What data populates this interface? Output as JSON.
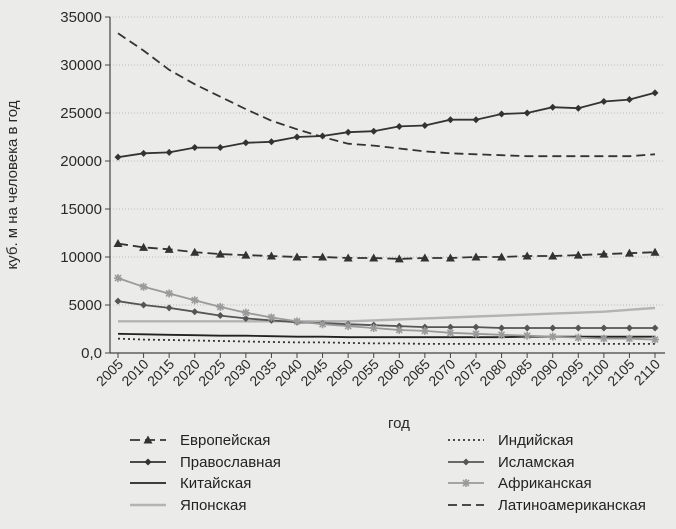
{
  "chart_data": {
    "type": "line",
    "title": "",
    "xlabel": "год",
    "ylabel": "куб. м на человека в год",
    "ylim": [
      0,
      35000
    ],
    "yticks": [
      0,
      5000,
      10000,
      15000,
      20000,
      25000,
      30000,
      35000
    ],
    "ytick_labels": [
      "0,0",
      "5000",
      "10000",
      "15000",
      "20000",
      "25000",
      "30000",
      "35000"
    ],
    "xticks": [
      "2005",
      "2010",
      "2015",
      "2020",
      "2025",
      "2030",
      "2035",
      "2040",
      "2045",
      "2050",
      "2055",
      "2060",
      "2065",
      "2070",
      "2075",
      "2080",
      "2085",
      "2090",
      "2095",
      "2100",
      "2105",
      "2110"
    ],
    "grid": "horizontal",
    "legend_position": "bottom",
    "series": [
      {
        "name": "Европейская",
        "color": "#333333",
        "dash": "10,5",
        "marker": "triangle",
        "x": [
          2005,
          2010,
          2015,
          2020,
          2025,
          2030,
          2035,
          2040,
          2045,
          2050,
          2055,
          2060,
          2065,
          2070,
          2075,
          2080,
          2085,
          2090,
          2095,
          2100,
          2105,
          2110
        ],
        "values": [
          11400,
          11000,
          10800,
          10500,
          10300,
          10200,
          10100,
          10000,
          10000,
          9900,
          9900,
          9800,
          9900,
          9900,
          10000,
          10000,
          10100,
          10100,
          10200,
          10300,
          10400,
          10500
        ]
      },
      {
        "name": "Православная",
        "color": "#333333",
        "dash": "",
        "marker": "diamond",
        "x": [
          2005,
          2010,
          2015,
          2020,
          2025,
          2030,
          2035,
          2040,
          2045,
          2050,
          2055,
          2060,
          2065,
          2070,
          2075,
          2080,
          2085,
          2090,
          2095,
          2100,
          2105,
          2110
        ],
        "values": [
          20400,
          20800,
          20900,
          21400,
          21400,
          21900,
          22000,
          22500,
          22600,
          23000,
          23100,
          23600,
          23700,
          24300,
          24300,
          24900,
          25000,
          25600,
          25500,
          26200,
          26400,
          27100
        ]
      },
      {
        "name": "Китайская",
        "color": "#222222",
        "dash": "",
        "marker": "none",
        "x": [
          2005,
          2010,
          2015,
          2020,
          2025,
          2030,
          2035,
          2040,
          2045,
          2050,
          2055,
          2060,
          2065,
          2070,
          2075,
          2080,
          2085,
          2090,
          2095,
          2100,
          2105,
          2110
        ],
        "values": [
          2000,
          1950,
          1900,
          1850,
          1800,
          1800,
          1750,
          1700,
          1700,
          1650,
          1650,
          1650,
          1650,
          1650,
          1650,
          1650,
          1700,
          1700,
          1700,
          1700,
          1700,
          1700
        ]
      },
      {
        "name": "Японская",
        "color": "#b3b3b3",
        "dash": "",
        "marker": "none",
        "x": [
          2005,
          2010,
          2015,
          2020,
          2025,
          2030,
          2035,
          2040,
          2045,
          2050,
          2055,
          2060,
          2065,
          2070,
          2075,
          2080,
          2085,
          2090,
          2095,
          2100,
          2105,
          2110
        ],
        "values": [
          3300,
          3300,
          3300,
          3300,
          3300,
          3300,
          3300,
          3300,
          3300,
          3300,
          3400,
          3500,
          3600,
          3700,
          3800,
          3900,
          4000,
          4100,
          4200,
          4300,
          4500,
          4700
        ]
      },
      {
        "name": "Индийская",
        "color": "#333333",
        "dash": "2,3",
        "marker": "none",
        "x": [
          2005,
          2010,
          2015,
          2020,
          2025,
          2030,
          2035,
          2040,
          2045,
          2050,
          2055,
          2060,
          2065,
          2070,
          2075,
          2080,
          2085,
          2090,
          2095,
          2100,
          2105,
          2110
        ],
        "values": [
          1500,
          1400,
          1350,
          1300,
          1250,
          1200,
          1150,
          1100,
          1100,
          1050,
          1000,
          1000,
          950,
          950,
          950,
          950,
          950,
          950,
          950,
          950,
          950,
          950
        ]
      },
      {
        "name": "Исламская",
        "color": "#555555",
        "dash": "",
        "marker": "diamond",
        "x": [
          2005,
          2010,
          2015,
          2020,
          2025,
          2030,
          2035,
          2040,
          2045,
          2050,
          2055,
          2060,
          2065,
          2070,
          2075,
          2080,
          2085,
          2090,
          2095,
          2100,
          2105,
          2110
        ],
        "values": [
          5400,
          5000,
          4700,
          4300,
          3900,
          3600,
          3400,
          3200,
          3100,
          3000,
          2900,
          2800,
          2700,
          2700,
          2700,
          2600,
          2600,
          2600,
          2600,
          2600,
          2600,
          2600
        ]
      },
      {
        "name": "Африканская",
        "color": "#9a9a9a",
        "dash": "",
        "marker": "star",
        "x": [
          2005,
          2010,
          2015,
          2020,
          2025,
          2030,
          2035,
          2040,
          2045,
          2050,
          2055,
          2060,
          2065,
          2070,
          2075,
          2080,
          2085,
          2090,
          2095,
          2100,
          2105,
          2110
        ],
        "values": [
          7800,
          6900,
          6200,
          5500,
          4800,
          4200,
          3700,
          3300,
          3000,
          2800,
          2600,
          2400,
          2300,
          2100,
          2000,
          1900,
          1800,
          1700,
          1600,
          1500,
          1500,
          1400
        ]
      },
      {
        "name": "Латиноамериканская",
        "color": "#333333",
        "dash": "9,5",
        "marker": "none",
        "x": [
          2005,
          2010,
          2015,
          2020,
          2025,
          2030,
          2035,
          2040,
          2045,
          2050,
          2055,
          2060,
          2065,
          2070,
          2075,
          2080,
          2085,
          2090,
          2095,
          2100,
          2105,
          2110
        ],
        "values": [
          33300,
          31500,
          29500,
          28000,
          26700,
          25400,
          24200,
          23300,
          22500,
          21800,
          21600,
          21300,
          21000,
          20800,
          20700,
          20600,
          20500,
          20500,
          20500,
          20500,
          20500,
          20700
        ]
      }
    ]
  }
}
